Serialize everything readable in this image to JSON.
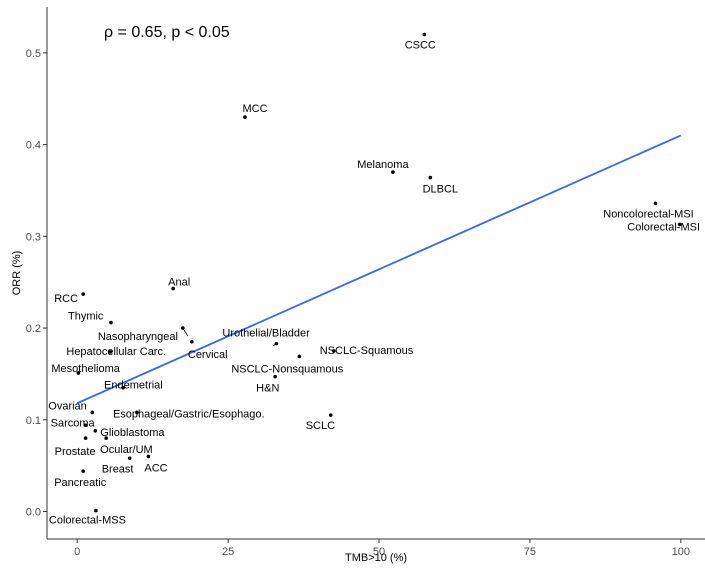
{
  "chart_data": {
    "type": "scatter",
    "xlabel": "TMB>10 (%)",
    "ylabel": "ORR (%)",
    "xlim": [
      -5,
      104
    ],
    "ylim": [
      -0.03,
      0.55
    ],
    "xticks": [
      0,
      25,
      50,
      75,
      100
    ],
    "yticks": [
      0.0,
      0.1,
      0.2,
      0.3,
      0.4,
      0.5
    ],
    "xtick_labels": [
      "0",
      "25",
      "50",
      "75",
      "100"
    ],
    "ytick_labels": [
      "0.0",
      "0.1",
      "0.2",
      "0.3",
      "0.4",
      "0.5"
    ],
    "grid": false,
    "annotation": "ρ = 0.65, p < 0.05",
    "trend_line": {
      "x": [
        0,
        100
      ],
      "y": [
        0.118,
        0.41
      ],
      "color": "#3366FF"
    },
    "points": [
      {
        "label": "CSCC",
        "x": 57.5,
        "y": 0.52
      },
      {
        "label": "MCC",
        "x": 27.8,
        "y": 0.43
      },
      {
        "label": "Melanoma",
        "x": 52.3,
        "y": 0.37
      },
      {
        "label": "DLBCL",
        "x": 58.5,
        "y": 0.364
      },
      {
        "label": "Noncolorectal-MSI",
        "x": 95.8,
        "y": 0.336
      },
      {
        "label": "Colorectal-MSI",
        "x": 99.8,
        "y": 0.313
      },
      {
        "label": "Anal",
        "x": 15.9,
        "y": 0.243
      },
      {
        "label": "RCC",
        "x": 1.0,
        "y": 0.237
      },
      {
        "label": "Thymic",
        "x": 5.6,
        "y": 0.206
      },
      {
        "label": "Nasopharyngeal",
        "x": 17.5,
        "y": 0.2
      },
      {
        "label": "Cervical",
        "x": 19.0,
        "y": 0.185
      },
      {
        "label": "Urothelial/Bladder",
        "x": 33.0,
        "y": 0.183
      },
      {
        "label": "Hepatocellular Carc.",
        "x": 5.5,
        "y": 0.174
      },
      {
        "label": "NSCLC-Squamous",
        "x": 42.5,
        "y": 0.175
      },
      {
        "label": "NSCLC-Nonsquamous",
        "x": 36.8,
        "y": 0.169
      },
      {
        "label": "Mesothelioma",
        "x": 0.2,
        "y": 0.151
      },
      {
        "label": "H&N",
        "x": 32.8,
        "y": 0.147
      },
      {
        "label": "Endemetrial",
        "x": 7.6,
        "y": 0.135
      },
      {
        "label": "Ovarian",
        "x": 2.5,
        "y": 0.108
      },
      {
        "label": "Esophageal/Gastric/Esophago.",
        "x": 9.9,
        "y": 0.108
      },
      {
        "label": "SCLC",
        "x": 42.0,
        "y": 0.105
      },
      {
        "label": "Sarcoma",
        "x": 1.4,
        "y": 0.094
      },
      {
        "label": "Glioblastoma",
        "x": 3.0,
        "y": 0.088
      },
      {
        "label": "Prostate",
        "x": 1.4,
        "y": 0.08
      },
      {
        "label": "Ocular/UM",
        "x": 4.8,
        "y": 0.08
      },
      {
        "label": "ACC",
        "x": 11.8,
        "y": 0.06
      },
      {
        "label": "Breast",
        "x": 8.7,
        "y": 0.058
      },
      {
        "label": "Pancreatic",
        "x": 1.0,
        "y": 0.044
      },
      {
        "label": "Colorectal-MSS",
        "x": 3.1,
        "y": 0.001
      }
    ]
  }
}
